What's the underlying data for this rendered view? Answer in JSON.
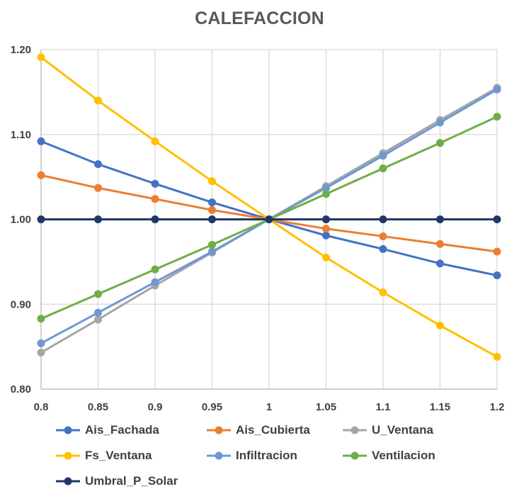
{
  "chart_data": {
    "type": "line",
    "title": "CALEFACCION",
    "xlabel": "",
    "ylabel": "",
    "x": [
      0.8,
      0.85,
      0.9,
      0.95,
      1,
      1.05,
      1.1,
      1.15,
      1.2
    ],
    "x_tick_labels": [
      "0.8",
      "0.85",
      "0.9",
      "0.95",
      "1",
      "1.05",
      "1.1",
      "1.15",
      "1.2"
    ],
    "ylim": [
      0.8,
      1.2
    ],
    "y_ticks": [
      0.8,
      0.9,
      1.0,
      1.1,
      1.2
    ],
    "y_tick_labels": [
      "0.80",
      "0.90",
      "1.00",
      "1.10",
      "1.20"
    ],
    "grid": true,
    "legend_position": "bottom",
    "series": [
      {
        "name": "Ais_Fachada",
        "color": "#4472C4",
        "values": [
          1.092,
          1.065,
          1.042,
          1.02,
          1.0,
          0.981,
          0.965,
          0.948,
          0.934
        ]
      },
      {
        "name": "Ais_Cubierta",
        "color": "#ED7D31",
        "values": [
          1.052,
          1.037,
          1.024,
          1.011,
          1.0,
          0.989,
          0.98,
          0.971,
          0.962
        ]
      },
      {
        "name": "U_Ventana",
        "color": "#A5A5A5",
        "values": [
          0.843,
          0.882,
          0.922,
          0.961,
          1.0,
          1.039,
          1.078,
          1.117,
          1.155
        ]
      },
      {
        "name": "Fs_Ventana",
        "color": "#FFC000",
        "values": [
          1.191,
          1.14,
          1.092,
          1.045,
          1.0,
          0.955,
          0.914,
          0.875,
          0.838
        ]
      },
      {
        "name": "Infiltracion",
        "color": "#6F98D0",
        "values": [
          0.854,
          0.89,
          0.926,
          0.962,
          1.0,
          1.037,
          1.075,
          1.114,
          1.153
        ]
      },
      {
        "name": "Ventilacion",
        "color": "#70AD47",
        "values": [
          0.883,
          0.912,
          0.941,
          0.97,
          1.0,
          1.03,
          1.06,
          1.09,
          1.121
        ]
      },
      {
        "name": "Umbral_P_Solar",
        "color": "#203864",
        "values": [
          1.0,
          1.0,
          1.0,
          1.0,
          1.0,
          1.0,
          1.0,
          1.0,
          1.0
        ]
      }
    ]
  }
}
